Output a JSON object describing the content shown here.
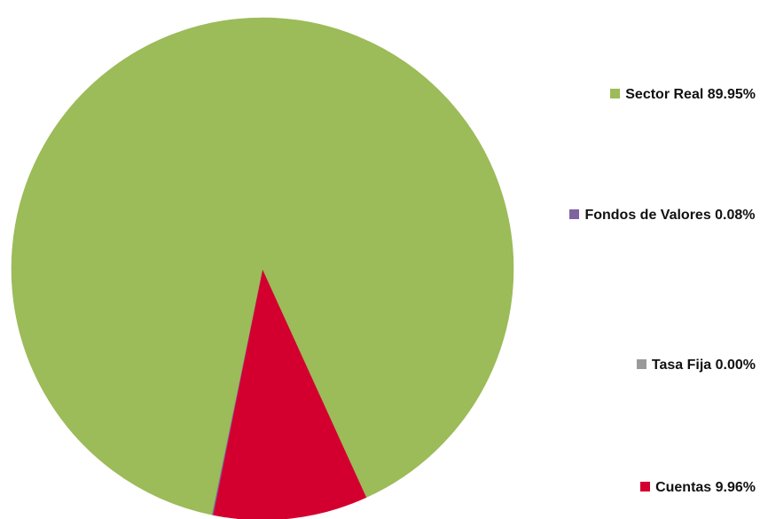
{
  "chart_data": {
    "type": "pie",
    "title": "",
    "slices": [
      {
        "label": "Sector Real",
        "value": 89.95,
        "legend_text": "Sector Real 89.95%",
        "color": "#9cbb59"
      },
      {
        "label": "Fondos de Valores",
        "value": 0.08,
        "legend_text": "Fondos de Valores 0.08%",
        "color": "#7f63a1"
      },
      {
        "label": "Tasa Fija",
        "value": 0.0,
        "legend_text": "Tasa Fija 0.00%",
        "color": "#9a9a9a"
      },
      {
        "label": "Cuentas",
        "value": 9.96,
        "legend_text": "Cuentas 9.96%",
        "color": "#d3002f"
      }
    ],
    "legend_position": "right"
  }
}
